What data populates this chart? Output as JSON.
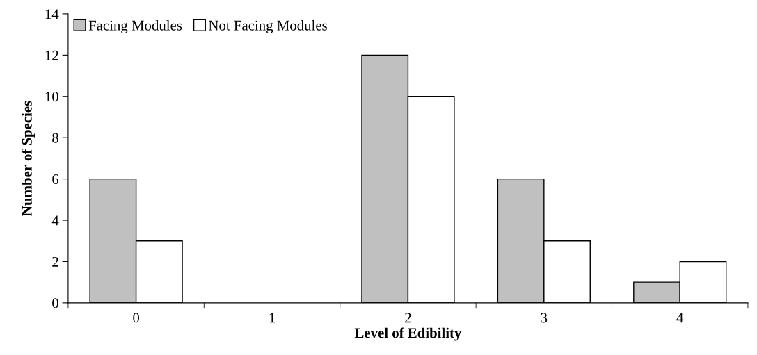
{
  "chart_data": {
    "type": "bar",
    "xlabel": "Level of Edibility",
    "ylabel": "Number of Species",
    "categories": [
      "0",
      "1",
      "2",
      "3",
      "4"
    ],
    "series": [
      {
        "name": "Facing Modules",
        "color": "#c0c0c0",
        "values": [
          6,
          0,
          12,
          6,
          1
        ]
      },
      {
        "name": "Not Facing Modules",
        "color": "#ffffff",
        "values": [
          3,
          0,
          10,
          3,
          2
        ]
      }
    ],
    "ylim": [
      0,
      14
    ],
    "yticks": [
      0,
      2,
      4,
      6,
      8,
      10,
      12,
      14
    ],
    "grid": false,
    "legend": "top left"
  }
}
